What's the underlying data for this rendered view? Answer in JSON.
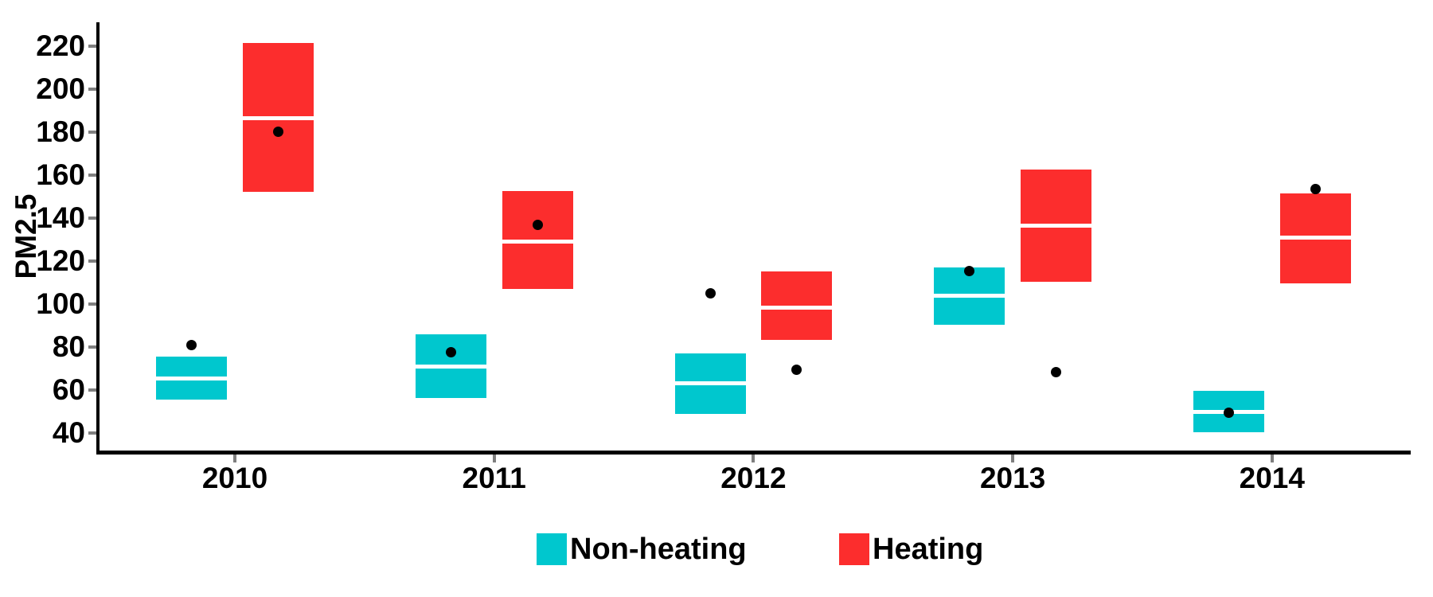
{
  "chart_data": {
    "type": "boxplot",
    "subtype": "crossbar-with-point",
    "title": "",
    "xlabel": "",
    "ylabel": "PM2.5",
    "categories": [
      "2010",
      "2011",
      "2012",
      "2013",
      "2014"
    ],
    "yticks": [
      220,
      200,
      180,
      160,
      140,
      120,
      100,
      80,
      60,
      40
    ],
    "ylim": [
      32,
      230
    ],
    "grid": "off",
    "legend_position": "bottom-center",
    "series": [
      {
        "name": "Non-heating",
        "color": "#00C7CE",
        "boxes": [
          {
            "lower": 55.5,
            "median": 65.5,
            "upper": 75.5,
            "point": 81
          },
          {
            "lower": 56.5,
            "median": 71,
            "upper": 86,
            "point": 77.5
          },
          {
            "lower": 49,
            "median": 63,
            "upper": 77,
            "point": 105
          },
          {
            "lower": 90.5,
            "median": 104,
            "upper": 117,
            "point": 115.5
          },
          {
            "lower": 40.5,
            "median": 50,
            "upper": 59.5,
            "point": 49.5
          }
        ]
      },
      {
        "name": "Heating",
        "color": "#FC2D2D",
        "boxes": [
          {
            "lower": 152,
            "median": 186.5,
            "upper": 221.5,
            "point": 180
          },
          {
            "lower": 107,
            "median": 129,
            "upper": 152.5,
            "point": 137
          },
          {
            "lower": 83.5,
            "median": 98.5,
            "upper": 115,
            "point": 69.5
          },
          {
            "lower": 110.5,
            "median": 136.5,
            "upper": 162.5,
            "point": 68.5
          },
          {
            "lower": 109.5,
            "median": 131,
            "upper": 151.5,
            "point": 153.5
          }
        ]
      }
    ],
    "point_color": "#000000",
    "median_line_color": "#ffffff",
    "axis_color": "#000000",
    "tick_mark_color": "#7f7f7f"
  }
}
